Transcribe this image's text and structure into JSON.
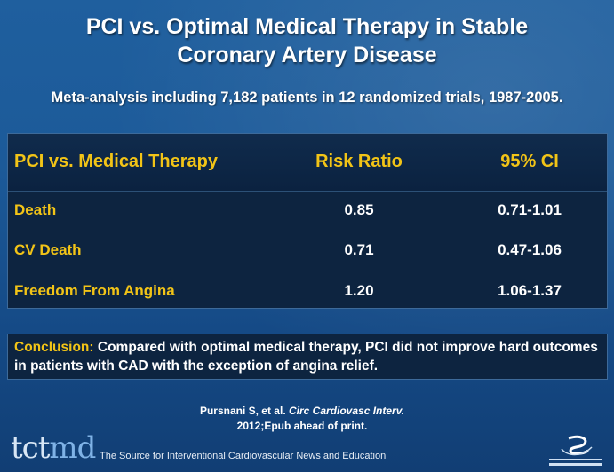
{
  "title_line1": "PCI vs. Optimal Medical Therapy in Stable",
  "title_line2": "Coronary Artery Disease",
  "subtitle": "Meta-analysis including 7,182 patients in 12 randomized trials, 1987-2005.",
  "table": {
    "headers": [
      "PCI vs. Medical Therapy",
      "Risk Ratio",
      "95% CI"
    ],
    "rows": [
      {
        "label": "Death",
        "risk_ratio": "0.85",
        "ci": "0.71-1.01"
      },
      {
        "label": "CV Death",
        "risk_ratio": "0.71",
        "ci": "0.47-1.06"
      },
      {
        "label": "Freedom From Angina",
        "risk_ratio": "1.20",
        "ci": "1.06-1.37"
      }
    ]
  },
  "conclusion": {
    "label": "Conclusion:",
    "text": " Compared with optimal medical therapy, PCI did not improve hard outcomes in patients with CAD with the exception of angina relief."
  },
  "citation": {
    "authors": "Pursnani S, et al. ",
    "journal": "Circ Cardiovasc Interv.",
    "detail": "2012;Epub ahead of print."
  },
  "footer": {
    "logo_tct": "tct",
    "logo_md": "md",
    "tagline": "The Source for Interventional Cardiovascular News and Education",
    "foundation_icon": "crf-foundation-logo"
  },
  "colors": {
    "accent": "#f2c417",
    "background": "#1c5a99",
    "table_bg": "#0d2440"
  }
}
